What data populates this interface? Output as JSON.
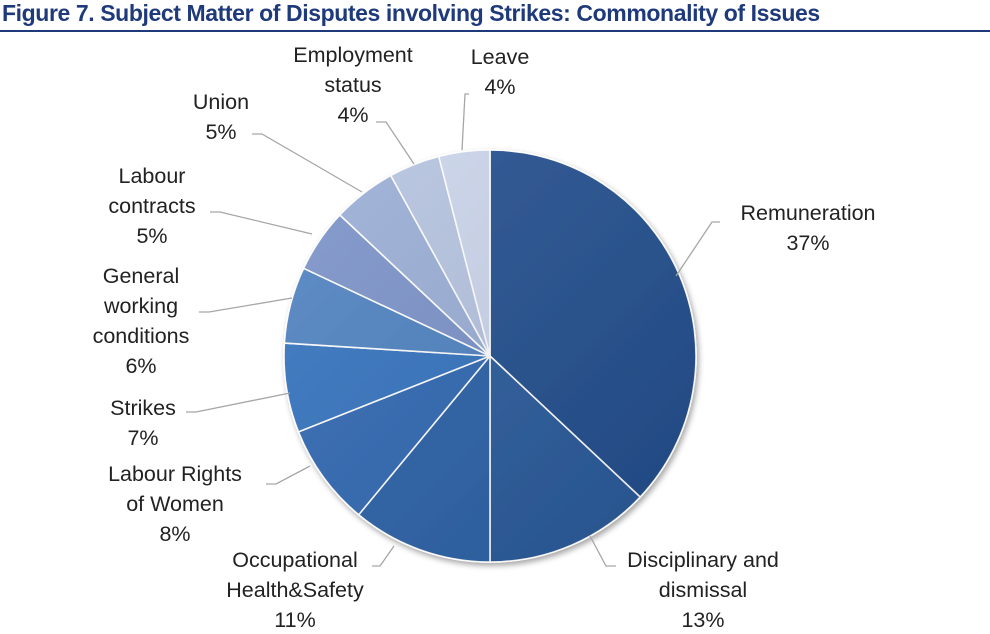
{
  "title": "Figure 7. Subject Matter of Disputes involving Strikes: Commonality of Issues",
  "chart_data": {
    "type": "pie",
    "title": "Figure 7. Subject Matter of Disputes involving Strikes: Commonality of Issues",
    "start": "12 o'clock",
    "direction": "clockwise",
    "slices": [
      {
        "label_lines": [
          "Remuneration"
        ],
        "value_label": "37%",
        "value": 37,
        "color": "#234f8f"
      },
      {
        "label_lines": [
          "Disciplinary and",
          "dismissal"
        ],
        "value_label": "13%",
        "value": 13,
        "color": "#2a5b9c"
      },
      {
        "label_lines": [
          "Occupational",
          "Health&Safety"
        ],
        "value_label": "11%",
        "value": 11,
        "color": "#2b62a8"
      },
      {
        "label_lines": [
          "Labour Rights",
          "of Women"
        ],
        "value_label": "8%",
        "value": 8,
        "color": "#3068b3"
      },
      {
        "label_lines": [
          "Strikes"
        ],
        "value_label": "7%",
        "value": 7,
        "color": "#3573bf"
      },
      {
        "label_lines": [
          "General",
          "working",
          "conditions"
        ],
        "value_label": "6%",
        "value": 6,
        "color": "#4f82c1"
      },
      {
        "label_lines": [
          "Labour",
          "contracts"
        ],
        "value_label": "5%",
        "value": 5,
        "color": "#7b93c9"
      },
      {
        "label_lines": [
          "Union"
        ],
        "value_label": "5%",
        "value": 5,
        "color": "#9aaed6"
      },
      {
        "label_lines": [
          "Employment",
          "status"
        ],
        "value_label": "4%",
        "value": 4,
        "color": "#b6c4e1"
      },
      {
        "label_lines": [
          "Leave"
        ],
        "value_label": "4%",
        "value": 4,
        "color": "#cbd5eb"
      }
    ]
  }
}
